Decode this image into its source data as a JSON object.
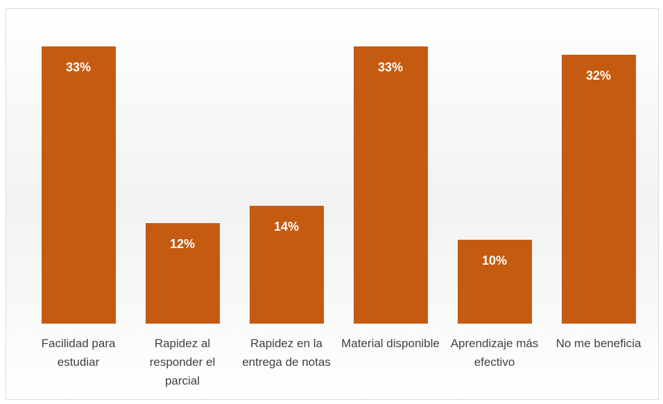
{
  "chart_data": {
    "type": "bar",
    "categories": [
      "Facilidad para estudiar",
      "Rapidez al responder el parcial",
      "Rapidez en la entrega de notas",
      "Material disponible",
      "Aprendizaje más efectivo",
      "No me beneficia"
    ],
    "values": [
      33,
      12,
      14,
      33,
      10,
      32
    ],
    "value_labels": [
      "33%",
      "12%",
      "14%",
      "33%",
      "10%",
      "32%"
    ],
    "color": "#c55a11"
  }
}
